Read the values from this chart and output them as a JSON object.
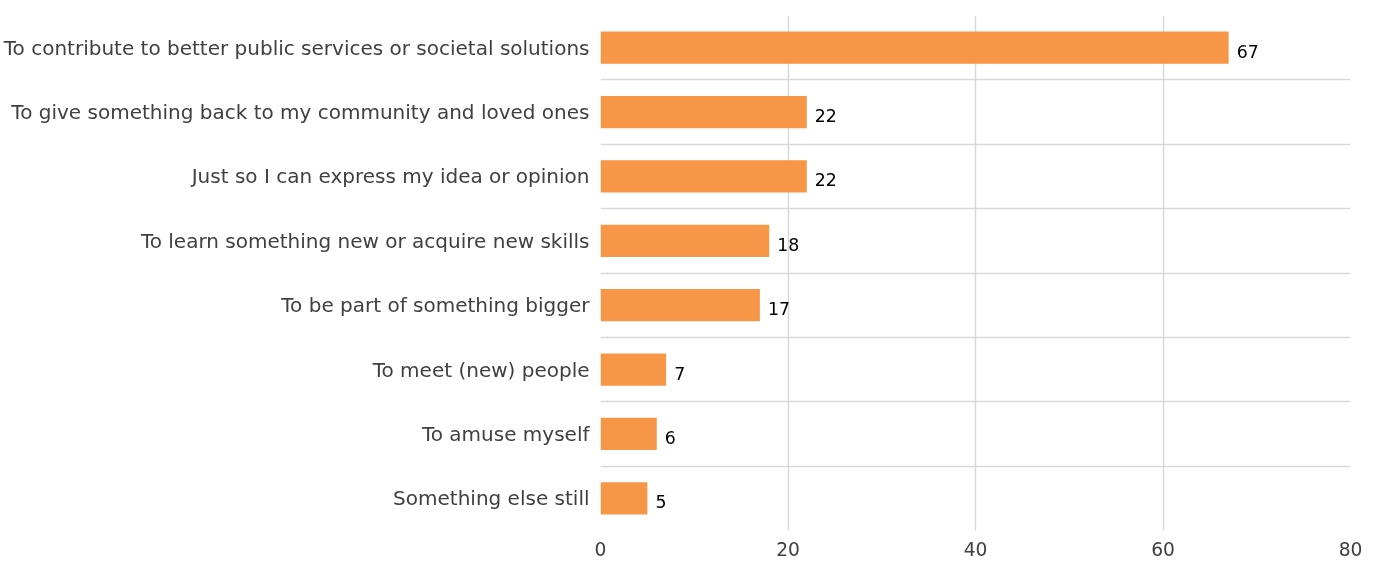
{
  "chart_data": {
    "type": "bar",
    "orientation": "horizontal",
    "categories": [
      "To contribute to better public services or societal solutions",
      "To give something back to my community and loved ones",
      "Just so I can express my idea or opinion",
      "To learn something new or acquire new skills",
      "To be part of something bigger",
      "To meet (new) people",
      "To amuse myself",
      "Something else still"
    ],
    "values": [
      67,
      22,
      22,
      18,
      17,
      7,
      6,
      5
    ],
    "color": "#f79646",
    "xlim": [
      0,
      80
    ],
    "xticks": [
      0,
      20,
      40,
      60,
      80
    ],
    "grid": true,
    "data_labels": true
  }
}
